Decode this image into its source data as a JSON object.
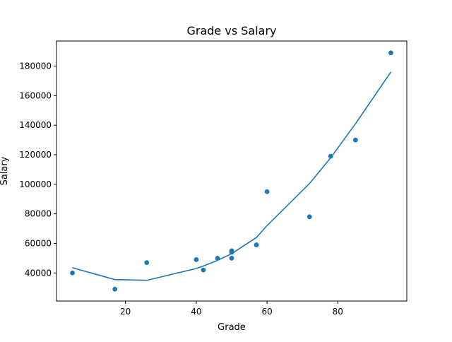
{
  "chart_data": {
    "type": "scatter",
    "title": "Grade vs Salary",
    "xlabel": "Grade",
    "ylabel": "Salary",
    "xlim": [
      0.5,
      99.5
    ],
    "ylim": [
      21000,
      197000
    ],
    "xticks": [
      20,
      40,
      60,
      80
    ],
    "yticks": [
      40000,
      60000,
      80000,
      100000,
      120000,
      140000,
      160000,
      180000
    ],
    "grid": false,
    "colors": {
      "points": "#1f77b4",
      "line": "#1f77b4",
      "axes": "#000000",
      "background": "#ffffff"
    },
    "series": [
      {
        "kind": "scatter",
        "x": [
          5,
          17,
          26,
          40,
          42,
          46,
          50,
          50,
          50,
          57,
          60,
          72,
          78,
          85,
          95
        ],
        "y": [
          40000,
          29000,
          47000,
          49000,
          42000,
          50000,
          55000,
          54000,
          50000,
          59000,
          95000,
          78000,
          119000,
          130000,
          189000
        ]
      },
      {
        "kind": "line",
        "x": [
          5,
          17,
          26,
          40,
          42,
          46,
          50,
          57,
          60,
          72,
          78,
          85,
          95
        ],
        "y": [
          43500,
          35500,
          35000,
          43000,
          44700,
          48500,
          53000,
          64000,
          72000,
          100500,
          118000,
          141000,
          176000
        ]
      }
    ]
  }
}
